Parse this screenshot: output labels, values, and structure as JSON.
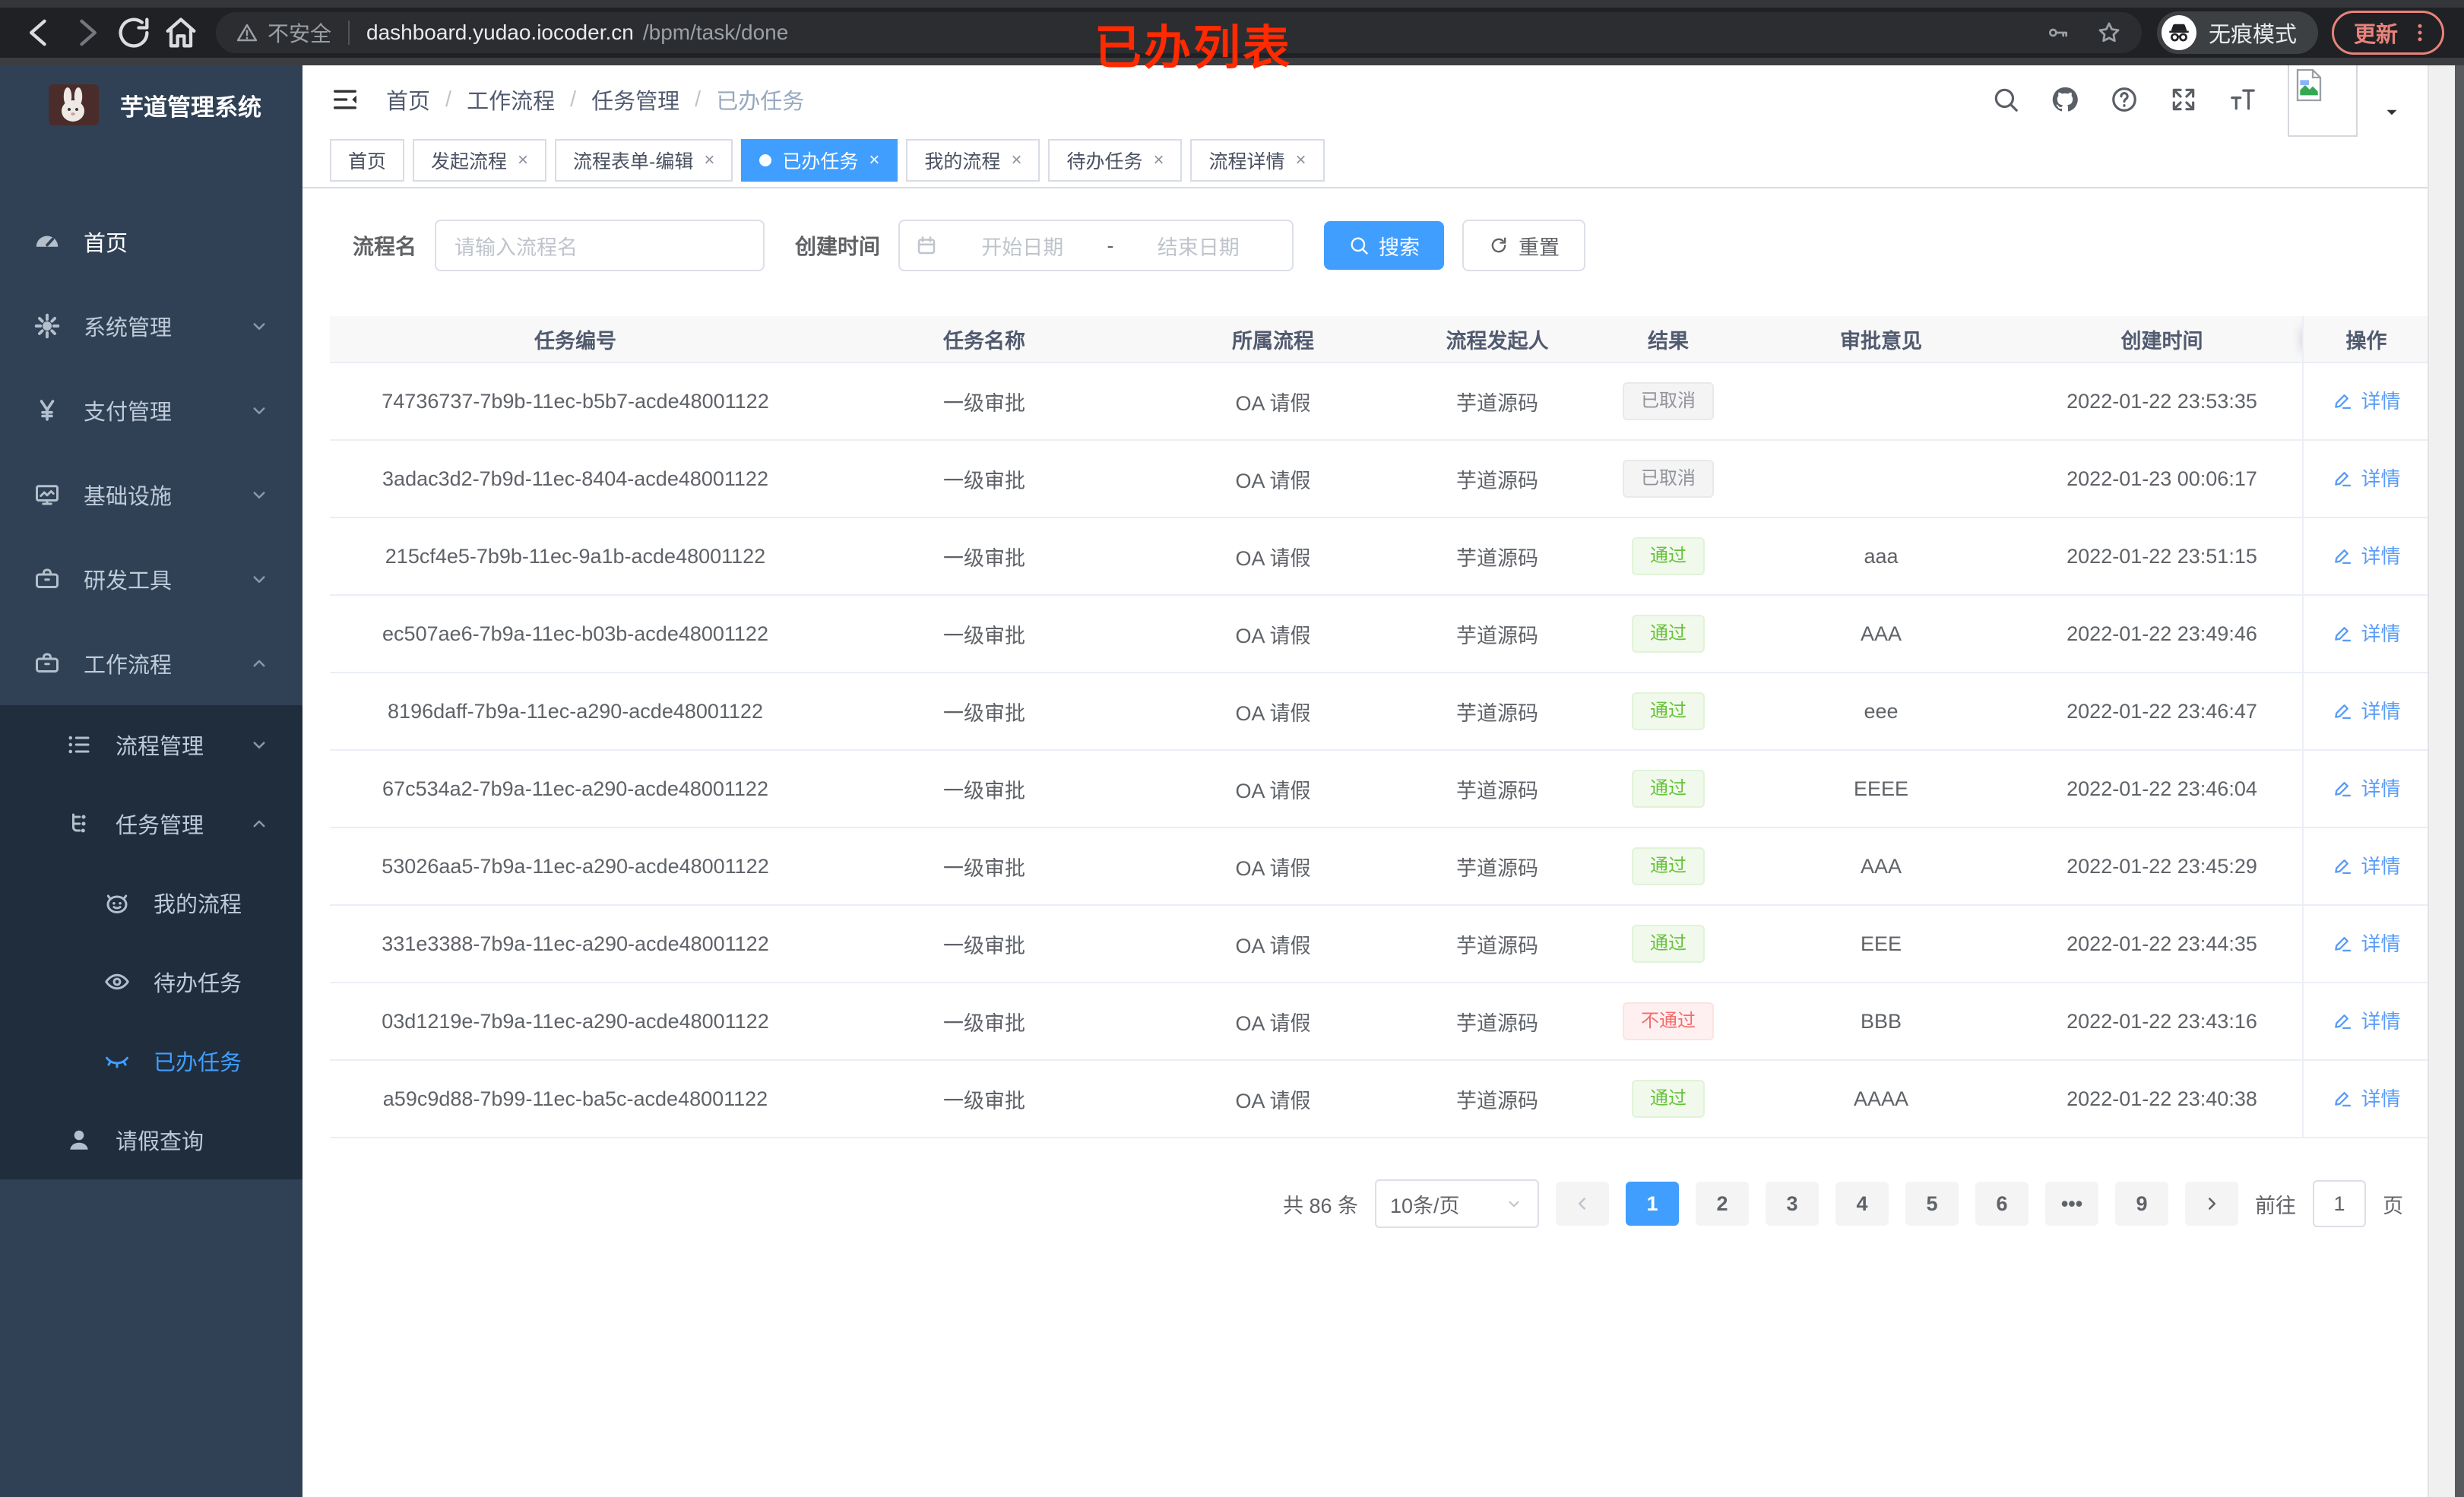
{
  "browser": {
    "security_label": "不安全",
    "url_domain": "dashboard.yudao.iocoder.cn",
    "url_path": "/bpm/task/done",
    "incognito_label": "无痕模式",
    "update_label": "更新"
  },
  "annotation": {
    "text": "已办列表"
  },
  "sidebar": {
    "app_title": "芋道管理系统",
    "items": [
      {
        "key": "home",
        "label": "首页",
        "icon": "dashboard-icon",
        "level": 1,
        "bright": true
      },
      {
        "key": "system-mgmt",
        "label": "系统管理",
        "icon": "gear-icon",
        "level": 1,
        "chevron": "down"
      },
      {
        "key": "payment-mgmt",
        "label": "支付管理",
        "icon": "yen-icon",
        "level": 1,
        "chevron": "down"
      },
      {
        "key": "infrastructure",
        "label": "基础设施",
        "icon": "monitor-icon",
        "level": 1,
        "chevron": "down"
      },
      {
        "key": "dev-tools",
        "label": "研发工具",
        "icon": "toolbox-icon",
        "level": 1,
        "chevron": "down"
      },
      {
        "key": "workflow",
        "label": "工作流程",
        "icon": "briefcase-icon",
        "level": 1,
        "chevron": "up"
      },
      {
        "key": "process-mgmt",
        "label": "流程管理",
        "icon": "tree-icon",
        "level": 2,
        "sub": true,
        "chevron": "down"
      },
      {
        "key": "task-mgmt",
        "label": "任务管理",
        "icon": "flow-icon",
        "level": 2,
        "sub": true,
        "chevron": "up"
      },
      {
        "key": "my-process",
        "label": "我的流程",
        "icon": "robot-icon",
        "level": 3,
        "sub": true
      },
      {
        "key": "todo-tasks",
        "label": "待办任务",
        "icon": "eye-icon",
        "level": 3,
        "sub": true
      },
      {
        "key": "done-tasks",
        "label": "已办任务",
        "icon": "eye-off-icon",
        "level": 3,
        "sub": true,
        "active": true
      },
      {
        "key": "leave-query",
        "label": "请假查询",
        "icon": "user-icon",
        "level": 2,
        "sub": true
      }
    ]
  },
  "header": {
    "breadcrumb": [
      "首页",
      "工作流程",
      "任务管理",
      "已办任务"
    ]
  },
  "tabs": [
    {
      "key": "home",
      "label": "首页",
      "closable": false,
      "active": false
    },
    {
      "key": "start-process",
      "label": "发起流程",
      "closable": true,
      "active": false
    },
    {
      "key": "form-edit",
      "label": "流程表单-编辑",
      "closable": true,
      "active": false
    },
    {
      "key": "done-tasks",
      "label": "已办任务",
      "closable": true,
      "active": true
    },
    {
      "key": "my-process",
      "label": "我的流程",
      "closable": true,
      "active": false
    },
    {
      "key": "todo-tasks",
      "label": "待办任务",
      "closable": true,
      "active": false
    },
    {
      "key": "process-detail",
      "label": "流程详情",
      "closable": true,
      "active": false
    }
  ],
  "filters": {
    "process_name_label": "流程名",
    "process_name_placeholder": "请输入流程名",
    "create_time_label": "创建时间",
    "date_start_placeholder": "开始日期",
    "date_separator": "-",
    "date_end_placeholder": "结束日期",
    "search_label": "搜索",
    "reset_label": "重置"
  },
  "table": {
    "columns": [
      "任务编号",
      "任务名称",
      "所属流程",
      "流程发起人",
      "结果",
      "审批意见",
      "创建时间",
      "操作"
    ],
    "action_label": "详情",
    "rows": [
      {
        "id": "74736737-7b9b-11ec-b5b7-acde48001122",
        "name": "一级审批",
        "process": "OA 请假",
        "starter": "芋道源码",
        "result": "已取消",
        "result_type": "info",
        "comment": "",
        "created": "2022-01-22 23:53:35"
      },
      {
        "id": "3adac3d2-7b9d-11ec-8404-acde48001122",
        "name": "一级审批",
        "process": "OA 请假",
        "starter": "芋道源码",
        "result": "已取消",
        "result_type": "info",
        "comment": "",
        "created": "2022-01-23 00:06:17"
      },
      {
        "id": "215cf4e5-7b9b-11ec-9a1b-acde48001122",
        "name": "一级审批",
        "process": "OA 请假",
        "starter": "芋道源码",
        "result": "通过",
        "result_type": "success",
        "comment": "aaa",
        "created": "2022-01-22 23:51:15"
      },
      {
        "id": "ec507ae6-7b9a-11ec-b03b-acde48001122",
        "name": "一级审批",
        "process": "OA 请假",
        "starter": "芋道源码",
        "result": "通过",
        "result_type": "success",
        "comment": "AAA",
        "created": "2022-01-22 23:49:46"
      },
      {
        "id": "8196daff-7b9a-11ec-a290-acde48001122",
        "name": "一级审批",
        "process": "OA 请假",
        "starter": "芋道源码",
        "result": "通过",
        "result_type": "success",
        "comment": "eee",
        "created": "2022-01-22 23:46:47"
      },
      {
        "id": "67c534a2-7b9a-11ec-a290-acde48001122",
        "name": "一级审批",
        "process": "OA 请假",
        "starter": "芋道源码",
        "result": "通过",
        "result_type": "success",
        "comment": "EEEE",
        "created": "2022-01-22 23:46:04"
      },
      {
        "id": "53026aa5-7b9a-11ec-a290-acde48001122",
        "name": "一级审批",
        "process": "OA 请假",
        "starter": "芋道源码",
        "result": "通过",
        "result_type": "success",
        "comment": "AAA",
        "created": "2022-01-22 23:45:29"
      },
      {
        "id": "331e3388-7b9a-11ec-a290-acde48001122",
        "name": "一级审批",
        "process": "OA 请假",
        "starter": "芋道源码",
        "result": "通过",
        "result_type": "success",
        "comment": "EEE",
        "created": "2022-01-22 23:44:35"
      },
      {
        "id": "03d1219e-7b9a-11ec-a290-acde48001122",
        "name": "一级审批",
        "process": "OA 请假",
        "starter": "芋道源码",
        "result": "不通过",
        "result_type": "danger",
        "comment": "BBB",
        "created": "2022-01-22 23:43:16"
      },
      {
        "id": "a59c9d88-7b99-11ec-ba5c-acde48001122",
        "name": "一级审批",
        "process": "OA 请假",
        "starter": "芋道源码",
        "result": "通过",
        "result_type": "success",
        "comment": "AAAA",
        "created": "2022-01-22 23:40:38"
      }
    ]
  },
  "pagination": {
    "total_text": "共 86 条",
    "page_size": "10条/页",
    "pages": [
      "1",
      "2",
      "3",
      "4",
      "5",
      "6",
      "•••",
      "9"
    ],
    "active_page": "1",
    "goto_label": "前往",
    "goto_value": "1",
    "goto_suffix": "页"
  },
  "colors": {
    "accent": "#409eff",
    "success": "#67c23a",
    "danger": "#f56c6c",
    "info": "#909399",
    "annotation": "#ff2a00",
    "sidebar_bg": "#304156",
    "submenu_bg": "#1f2d3d",
    "update_coral": "#e8837b"
  }
}
